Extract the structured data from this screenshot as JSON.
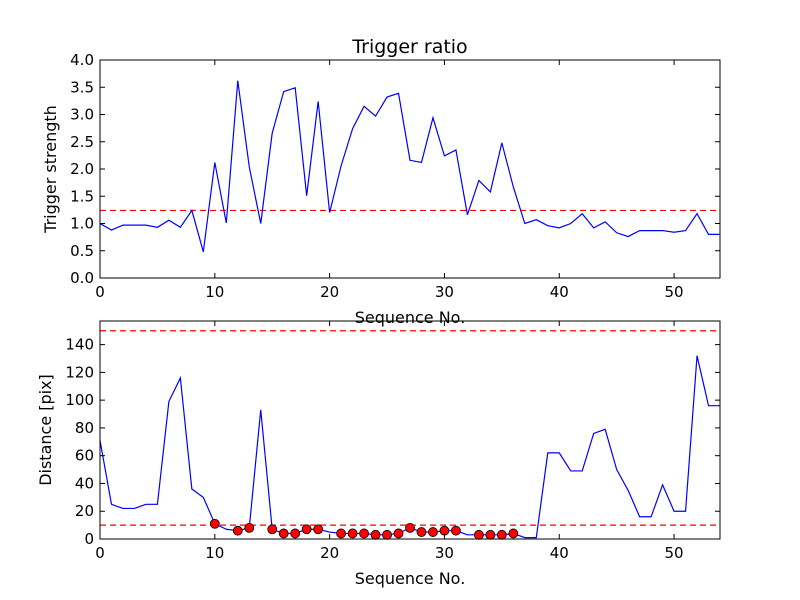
{
  "chart_data": [
    {
      "type": "line",
      "title": "Trigger ratio",
      "xlabel": "Sequence No.",
      "ylabel": "Trigger strength",
      "xlim": [
        0,
        54
      ],
      "ylim": [
        0,
        4.0
      ],
      "xticks": [
        0,
        10,
        20,
        30,
        40,
        50
      ],
      "yticks": [
        0.0,
        0.5,
        1.0,
        1.5,
        2.0,
        2.5,
        3.0,
        3.5,
        4.0
      ],
      "x": [
        0,
        1,
        2,
        3,
        4,
        5,
        6,
        7,
        8,
        9,
        10,
        11,
        12,
        13,
        14,
        15,
        16,
        17,
        18,
        19,
        20,
        21,
        22,
        23,
        24,
        25,
        26,
        27,
        28,
        29,
        30,
        31,
        32,
        33,
        34,
        35,
        36,
        37,
        38,
        39,
        40,
        41,
        42,
        43,
        44,
        45,
        46,
        47,
        48,
        49,
        50,
        51,
        52,
        53,
        54
      ],
      "series": [
        {
          "color": "#0000ff",
          "values": [
            1.0,
            0.88,
            0.97,
            0.97,
            0.97,
            0.93,
            1.06,
            0.93,
            1.24,
            0.48,
            2.12,
            1.01,
            3.62,
            2.04,
            1.0,
            2.66,
            3.42,
            3.49,
            1.51,
            3.24,
            1.2,
            2.06,
            2.74,
            3.15,
            2.97,
            3.32,
            3.39,
            2.16,
            2.12,
            2.94,
            2.24,
            2.35,
            1.16,
            1.79,
            1.58,
            2.48,
            1.67,
            1.0,
            1.07,
            0.96,
            0.92,
            1.0,
            1.18,
            0.92,
            1.03,
            0.83,
            0.76,
            0.87,
            0.87,
            0.87,
            0.84,
            0.87,
            1.18,
            0.8,
            0.8
          ]
        }
      ],
      "hlines": [
        {
          "y": 1.24,
          "color": "#ff0000",
          "style": "dashed"
        }
      ],
      "grid": false
    },
    {
      "type": "line",
      "title": "",
      "xlabel": "Sequence No.",
      "ylabel": "Distance [pix]",
      "xlim": [
        0,
        54
      ],
      "ylim": [
        0,
        157
      ],
      "xticks": [
        0,
        10,
        20,
        30,
        40,
        50
      ],
      "yticks": [
        0,
        20,
        40,
        60,
        80,
        100,
        120,
        140
      ],
      "x": [
        0,
        1,
        2,
        3,
        4,
        5,
        6,
        7,
        8,
        9,
        10,
        11,
        12,
        13,
        14,
        15,
        16,
        17,
        18,
        19,
        20,
        21,
        22,
        23,
        24,
        25,
        26,
        27,
        28,
        29,
        30,
        31,
        32,
        33,
        34,
        35,
        36,
        37,
        38,
        39,
        40,
        41,
        42,
        43,
        44,
        45,
        46,
        47,
        48,
        49,
        50,
        51,
        52,
        53,
        54
      ],
      "series": [
        {
          "color": "#0000ff",
          "values": [
            71,
            25,
            22,
            22,
            25,
            25,
            99,
            116,
            36,
            30,
            11,
            7,
            6,
            8,
            93,
            7,
            4,
            4,
            7,
            7,
            5,
            4,
            4,
            4,
            3,
            3,
            4,
            8,
            5,
            5,
            6,
            6,
            3,
            3,
            3,
            3,
            4,
            1,
            1,
            62,
            62,
            49,
            49,
            76,
            79,
            50,
            35,
            16,
            16,
            39,
            20,
            20,
            132,
            96,
            96
          ]
        }
      ],
      "markers": {
        "color": "#ff0000",
        "x": [
          10,
          12,
          13,
          15,
          16,
          17,
          18,
          19,
          21,
          22,
          23,
          24,
          25,
          26,
          27,
          28,
          29,
          30,
          31,
          33,
          34,
          35,
          36
        ],
        "y": [
          11,
          6,
          8,
          7,
          4,
          4,
          7,
          7,
          4,
          4,
          4,
          3,
          3,
          4,
          8,
          5,
          5,
          6,
          6,
          3,
          3,
          3,
          4
        ]
      },
      "hlines": [
        {
          "y": 150,
          "color": "#ff0000",
          "style": "dashed"
        },
        {
          "y": 10,
          "color": "#ff0000",
          "style": "dashed"
        }
      ],
      "grid": false
    }
  ]
}
